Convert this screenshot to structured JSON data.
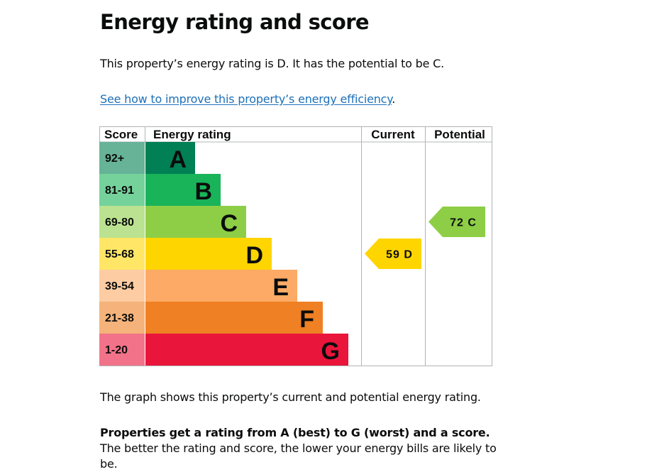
{
  "heading": "Energy rating and score",
  "intro": "This property’s energy rating is D. It has the potential to be C.",
  "improve_link": "See how to improve this property’s energy efficiency",
  "improve_suffix": ".",
  "graph_text": "The graph shows this property’s current and potential energy rating.",
  "rating_bold": "Properties get a rating from A (best) to G (worst) and a score.",
  "rating_rest": " The better the rating and score, the lower your energy bills are likely to be.",
  "chart_data": {
    "type": "table",
    "headers": {
      "score": "Score",
      "rating": "Energy rating",
      "current": "Current",
      "potential": "Potential"
    },
    "bands": [
      {
        "score": "92+",
        "letter": "A",
        "color": "#008054",
        "score_bg": "#66b398"
      },
      {
        "score": "81-91",
        "letter": "B",
        "color": "#19b459",
        "score_bg": "#75d29b"
      },
      {
        "score": "69-80",
        "letter": "C",
        "color": "#8dce46",
        "score_bg": "#bbe290"
      },
      {
        "score": "55-68",
        "letter": "D",
        "color": "#ffd500",
        "score_bg": "#ffe666"
      },
      {
        "score": "39-54",
        "letter": "E",
        "color": "#fcaa65",
        "score_bg": "#fdcca3"
      },
      {
        "score": "21-38",
        "letter": "F",
        "color": "#ef8023",
        "score_bg": "#f5b37b"
      },
      {
        "score": "1-20",
        "letter": "G",
        "color": "#e9153b",
        "score_bg": "#f27389"
      }
    ],
    "current": {
      "score": 59,
      "band": "D",
      "color": "#ffd500"
    },
    "potential": {
      "score": 72,
      "band": "C",
      "color": "#8dce46"
    }
  }
}
